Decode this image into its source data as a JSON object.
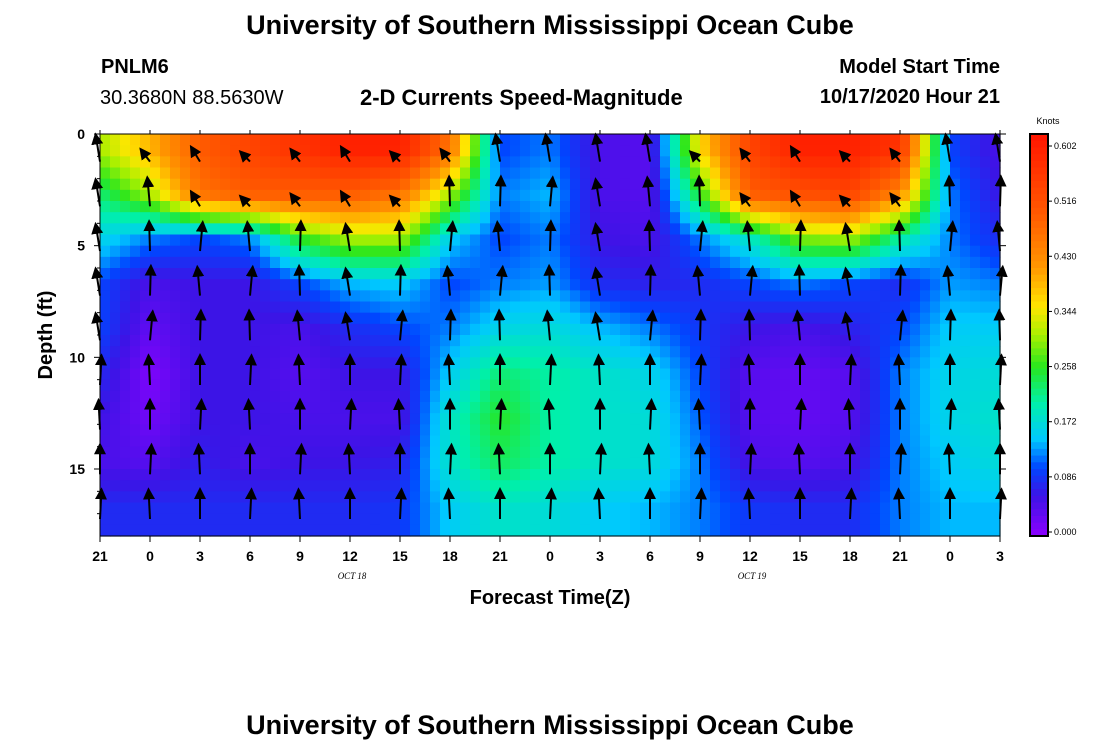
{
  "page": {
    "title_top": "University of Southern Mississippi Ocean Cube",
    "title_bottom": "University of Southern Mississippi Ocean Cube",
    "station_id": "PNLM6",
    "station_coords": "30.3680N 88.5630W",
    "chart_title": "2-D Currents Speed-Magnitude",
    "model_start_label": "Model Start Time",
    "model_start_value": "10/17/2020 Hour 21"
  },
  "chart_data": {
    "type": "heatmap",
    "title": "2-D Currents Speed-Magnitude",
    "xlabel": "Forecast Time(Z)",
    "ylabel": "Depth (ft)",
    "x_ticks": [
      "21",
      "0",
      "3",
      "6",
      "9",
      "12",
      "15",
      "18",
      "21",
      "0",
      "3",
      "6",
      "9",
      "12",
      "15",
      "18",
      "21",
      "0",
      "3"
    ],
    "date_labels": [
      {
        "text": "OCT 18",
        "at_index": 5
      },
      {
        "text": "OCT 19",
        "at_index": 13
      }
    ],
    "y_ticks": [
      0,
      5,
      10,
      15
    ],
    "ylim": [
      0,
      18
    ],
    "colorbar": {
      "unit": "Knots",
      "ticks": [
        "0.602",
        "0.516",
        "0.430",
        "0.344",
        "0.258",
        "0.172",
        "0.086",
        "0.000"
      ],
      "range": [
        0.0,
        0.602
      ]
    },
    "depths_ft": [
      0.7,
      2.7,
      4.7,
      6.7,
      8.7,
      10.7,
      12.7,
      14.7,
      16.7
    ],
    "speed_knots_by_time_step": [
      [
        0.3,
        0.22,
        0.16,
        0.1,
        0.1,
        0.08,
        0.06,
        0.05,
        0.08
      ],
      [
        0.38,
        0.3,
        0.12,
        0.05,
        0.03,
        0.01,
        0.02,
        0.04,
        0.08
      ],
      [
        0.48,
        0.45,
        0.1,
        0.06,
        0.06,
        0.06,
        0.06,
        0.07,
        0.08
      ],
      [
        0.52,
        0.48,
        0.12,
        0.06,
        0.06,
        0.06,
        0.06,
        0.05,
        0.08
      ],
      [
        0.55,
        0.48,
        0.25,
        0.1,
        0.05,
        0.04,
        0.05,
        0.06,
        0.08
      ],
      [
        0.58,
        0.48,
        0.3,
        0.14,
        0.08,
        0.06,
        0.05,
        0.06,
        0.08
      ],
      [
        0.58,
        0.45,
        0.3,
        0.15,
        0.1,
        0.06,
        0.05,
        0.07,
        0.09
      ],
      [
        0.45,
        0.3,
        0.15,
        0.1,
        0.12,
        0.15,
        0.18,
        0.18,
        0.15
      ],
      [
        0.1,
        0.12,
        0.1,
        0.12,
        0.16,
        0.22,
        0.25,
        0.23,
        0.18
      ],
      [
        0.12,
        0.14,
        0.12,
        0.13,
        0.17,
        0.2,
        0.2,
        0.2,
        0.17
      ],
      [
        0.05,
        0.05,
        0.06,
        0.08,
        0.14,
        0.18,
        0.18,
        0.18,
        0.15
      ],
      [
        0.04,
        0.04,
        0.05,
        0.07,
        0.12,
        0.16,
        0.17,
        0.17,
        0.14
      ],
      [
        0.35,
        0.25,
        0.12,
        0.08,
        0.09,
        0.1,
        0.11,
        0.12,
        0.12
      ],
      [
        0.52,
        0.48,
        0.18,
        0.1,
        0.06,
        0.04,
        0.04,
        0.05,
        0.09
      ],
      [
        0.58,
        0.5,
        0.28,
        0.12,
        0.05,
        0.03,
        0.03,
        0.04,
        0.08
      ],
      [
        0.58,
        0.52,
        0.3,
        0.1,
        0.07,
        0.04,
        0.04,
        0.05,
        0.08
      ],
      [
        0.55,
        0.42,
        0.2,
        0.08,
        0.1,
        0.12,
        0.12,
        0.12,
        0.12
      ],
      [
        0.1,
        0.12,
        0.12,
        0.13,
        0.15,
        0.16,
        0.16,
        0.15,
        0.14
      ],
      [
        0.05,
        0.06,
        0.08,
        0.12,
        0.15,
        0.17,
        0.18,
        0.17,
        0.14
      ]
    ]
  }
}
